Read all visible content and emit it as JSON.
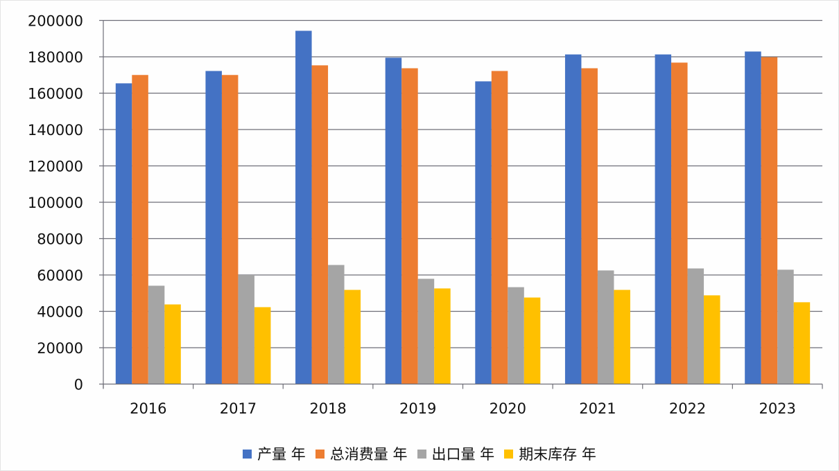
{
  "chart_data": {
    "type": "bar",
    "title": "",
    "xlabel": "",
    "ylabel": "",
    "categories": [
      "2016",
      "2017",
      "2018",
      "2019",
      "2020",
      "2021",
      "2022",
      "2023"
    ],
    "series": [
      {
        "name": "产量 年",
        "color": "#4472C4",
        "values": [
          165400,
          172200,
          194300,
          179500,
          166500,
          181300,
          181300,
          182900
        ]
      },
      {
        "name": "总消费量 年",
        "color": "#ED7D31",
        "values": [
          170000,
          170000,
          175300,
          173700,
          172200,
          173700,
          176800,
          179800
        ]
      },
      {
        "name": "出口量 年",
        "color": "#A5A5A5",
        "values": [
          54100,
          60000,
          65500,
          57900,
          53300,
          62500,
          63600,
          62900
        ]
      },
      {
        "name": "期末库存 年",
        "color": "#FFC000",
        "values": [
          43800,
          42300,
          51800,
          52600,
          47600,
          51800,
          48800,
          45000
        ]
      }
    ],
    "ylim": [
      0,
      200000
    ],
    "yticks": [
      0,
      20000,
      40000,
      60000,
      80000,
      100000,
      120000,
      140000,
      160000,
      180000,
      200000
    ],
    "grid": true,
    "legend_position": "bottom"
  }
}
